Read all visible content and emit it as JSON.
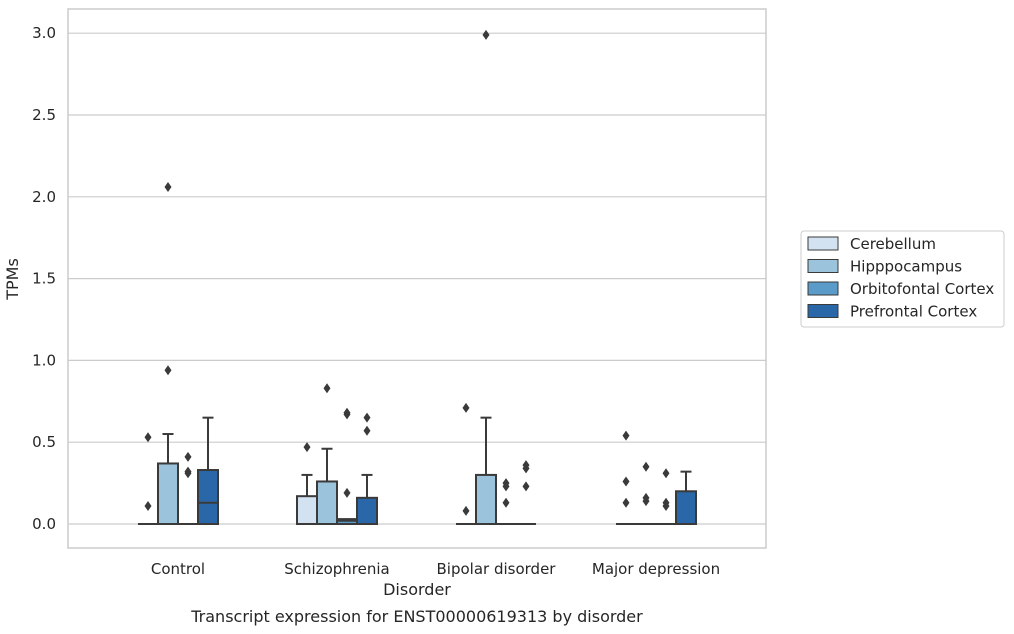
{
  "caption": "Transcript expression for ENST00000619313 by disorder",
  "chart_data": {
    "type": "box",
    "xlabel": "Disorder",
    "ylabel": "TPMs",
    "ylim": [
      -0.15,
      3.15
    ],
    "yticks": [
      0.0,
      0.5,
      1.0,
      1.5,
      2.0,
      2.5,
      3.0
    ],
    "ytick_labels": [
      "0.0",
      "0.5",
      "1.0",
      "1.5",
      "2.0",
      "2.5",
      "3.0"
    ],
    "grid": "horizontal",
    "legend_position": "right",
    "categories": [
      "Control",
      "Schizophrenia",
      "Bipolar disorder",
      "Major depression"
    ],
    "series": [
      {
        "name": "Cerebellum",
        "color": "#d3e2f1",
        "boxes": [
          {
            "q1": 0,
            "median": 0,
            "q3": 0,
            "whisker_low": 0,
            "whisker_high": 0,
            "outliers": [
              0.53,
              0.11
            ]
          },
          {
            "q1": 0,
            "median": 0,
            "q3": 0.17,
            "whisker_low": 0,
            "whisker_high": 0.3,
            "outliers": [
              0.47
            ]
          },
          {
            "q1": 0,
            "median": 0,
            "q3": 0,
            "whisker_low": 0,
            "whisker_high": 0,
            "outliers": [
              0.71,
              0.08
            ]
          },
          {
            "q1": 0,
            "median": 0,
            "q3": 0,
            "whisker_low": 0,
            "whisker_high": 0,
            "outliers": [
              0.54,
              0.26,
              0.13
            ]
          }
        ]
      },
      {
        "name": "Hipppocampus",
        "color": "#9bc3dc",
        "boxes": [
          {
            "q1": 0,
            "median": 0,
            "q3": 0.37,
            "whisker_low": 0,
            "whisker_high": 0.55,
            "outliers": [
              2.06,
              0.94
            ]
          },
          {
            "q1": 0,
            "median": 0,
            "q3": 0.26,
            "whisker_low": 0,
            "whisker_high": 0.46,
            "outliers": [
              0.83
            ]
          },
          {
            "q1": 0,
            "median": 0,
            "q3": 0.3,
            "whisker_low": 0,
            "whisker_high": 0.65,
            "outliers": [
              2.99
            ]
          },
          {
            "q1": 0,
            "median": 0,
            "q3": 0,
            "whisker_low": 0,
            "whisker_high": 0,
            "outliers": [
              0.35,
              0.16,
              0.14
            ]
          }
        ]
      },
      {
        "name": "Orbitofontal Cortex",
        "color": "#5b9bc9",
        "boxes": [
          {
            "q1": 0,
            "median": 0,
            "q3": 0,
            "whisker_low": 0,
            "whisker_high": 0,
            "outliers": [
              0.41,
              0.32,
              0.31
            ]
          },
          {
            "q1": 0,
            "median": 0.02,
            "q3": 0.03,
            "whisker_low": 0,
            "whisker_high": 0.03,
            "outliers": [
              0.68,
              0.67,
              0.19
            ]
          },
          {
            "q1": 0,
            "median": 0,
            "q3": 0,
            "whisker_low": 0,
            "whisker_high": 0,
            "outliers": [
              0.25,
              0.23,
              0.13
            ]
          },
          {
            "q1": 0,
            "median": 0,
            "q3": 0,
            "whisker_low": 0,
            "whisker_high": 0,
            "outliers": [
              0.31,
              0.13,
              0.11
            ]
          }
        ]
      },
      {
        "name": "Prefrontal Cortex",
        "color": "#2967a9",
        "boxes": [
          {
            "q1": 0,
            "median": 0.13,
            "q3": 0.33,
            "whisker_low": 0,
            "whisker_high": 0.65,
            "outliers": []
          },
          {
            "q1": 0,
            "median": 0,
            "q3": 0.16,
            "whisker_low": 0,
            "whisker_high": 0.3,
            "outliers": [
              0.65,
              0.57
            ]
          },
          {
            "q1": 0,
            "median": 0,
            "q3": 0,
            "whisker_low": 0,
            "whisker_high": 0,
            "outliers": [
              0.36,
              0.34,
              0.23
            ]
          },
          {
            "q1": 0,
            "median": 0,
            "q3": 0.2,
            "whisker_low": 0,
            "whisker_high": 0.32,
            "outliers": []
          }
        ]
      }
    ]
  }
}
